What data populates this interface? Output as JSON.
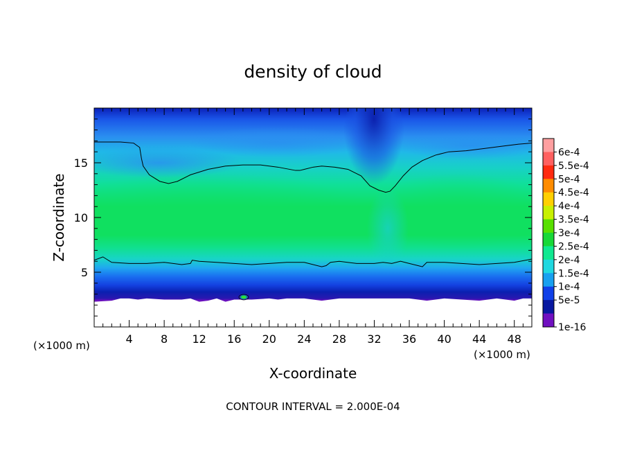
{
  "chart_data": {
    "type": "heatmap",
    "title": "density of cloud",
    "xlabel": "X-coordinate",
    "ylabel": "Z-coordinate",
    "x_unit_left": "(×1000 m)",
    "x_unit_right": "(×1000 m)",
    "footer": "CONTOUR INTERVAL = 2.000E-04",
    "xlim": [
      0,
      50
    ],
    "ylim": [
      0,
      20
    ],
    "x_ticks": [
      4,
      8,
      12,
      16,
      20,
      24,
      28,
      32,
      36,
      40,
      44,
      48
    ],
    "y_ticks": [
      5,
      10,
      15
    ],
    "colorbar": {
      "labels": [
        "6e-4",
        "5.5e-4",
        "5e-4",
        "4.5e-4",
        "4e-4",
        "3.5e-4",
        "3e-4",
        "2.5e-4",
        "2e-4",
        "1.5e-4",
        "1e-4",
        "5e-5",
        "1e-16"
      ],
      "colors": [
        "#ff9fa0",
        "#ff6060",
        "#ff2a10",
        "#ff8c00",
        "#ffd000",
        "#c8f000",
        "#58e000",
        "#18d838",
        "#10e890",
        "#20d8e0",
        "#18a0f0",
        "#1040e8",
        "#0818a0",
        "#7010c0"
      ]
    },
    "contour_levels": [
      0.0002
    ],
    "contours": [
      {
        "level": 0.0002,
        "name": "upper",
        "x": [
          0,
          1.5,
          3,
          4.5,
          5.2,
          5.4,
          5.6,
          6.3,
          7.5,
          8.5,
          9.5,
          11,
          13,
          15,
          17,
          19,
          21,
          23,
          23.5,
          24,
          25,
          26,
          27.5,
          29,
          30.5,
          31.5,
          32.5,
          33.3,
          33.8,
          34.4,
          35.3,
          36.3,
          37.5,
          39,
          40.5,
          42.5,
          44.5,
          46.5,
          48.5,
          50
        ],
        "y": [
          16.9,
          16.9,
          16.9,
          16.8,
          16.4,
          15.4,
          14.7,
          13.9,
          13.3,
          13.1,
          13.3,
          13.9,
          14.4,
          14.7,
          14.8,
          14.8,
          14.6,
          14.3,
          14.3,
          14.4,
          14.6,
          14.7,
          14.6,
          14.4,
          13.8,
          12.9,
          12.5,
          12.3,
          12.4,
          12.9,
          13.8,
          14.6,
          15.2,
          15.7,
          16.0,
          16.1,
          16.3,
          16.5,
          16.7,
          16.8
        ]
      },
      {
        "level": 0.0002,
        "name": "lower",
        "x": [
          0,
          1,
          2,
          4,
          6,
          8,
          10,
          11,
          11.2,
          12,
          14,
          16,
          18,
          20,
          22,
          24,
          26,
          26.5,
          27,
          28,
          30,
          32,
          33,
          34,
          35,
          36,
          37,
          37.5,
          38,
          40,
          42,
          44,
          46,
          48,
          50
        ],
        "y": [
          6.1,
          6.4,
          5.9,
          5.8,
          5.8,
          5.9,
          5.7,
          5.8,
          6.1,
          6.0,
          5.9,
          5.8,
          5.7,
          5.8,
          5.9,
          5.9,
          5.5,
          5.6,
          5.9,
          6.0,
          5.8,
          5.8,
          5.9,
          5.8,
          6.0,
          5.8,
          5.6,
          5.5,
          5.9,
          5.9,
          5.8,
          5.7,
          5.8,
          5.9,
          6.2
        ]
      }
    ],
    "terrain_top": {
      "x": [
        0,
        2,
        3,
        4,
        5,
        6,
        8,
        10,
        11,
        12,
        13,
        14,
        15,
        16,
        18,
        20,
        21,
        22,
        24,
        26,
        28,
        30,
        32,
        34,
        36,
        37,
        38,
        40,
        42,
        44,
        46,
        47,
        48,
        49,
        50
      ],
      "y": [
        2.3,
        2.4,
        2.6,
        2.6,
        2.5,
        2.6,
        2.5,
        2.5,
        2.6,
        2.3,
        2.4,
        2.6,
        2.3,
        2.5,
        2.5,
        2.6,
        2.5,
        2.6,
        2.6,
        2.4,
        2.6,
        2.6,
        2.6,
        2.6,
        2.6,
        2.5,
        2.4,
        2.6,
        2.5,
        2.4,
        2.6,
        2.5,
        2.4,
        2.6,
        2.6
      ]
    },
    "fields": [
      {
        "name": "top-dark-band",
        "x": [
          0,
          50
        ],
        "z": [
          18.5,
          20
        ],
        "value": 8e-05
      },
      {
        "name": "upper-mid-band",
        "x": [
          0,
          50
        ],
        "z": [
          16,
          18.5
        ],
        "value": 0.00014
      },
      {
        "name": "plateau",
        "x": [
          0,
          50
        ],
        "z": [
          7,
          14
        ],
        "value": 0.00026
      },
      {
        "name": "lower-transition",
        "x": [
          0,
          50
        ],
        "z": [
          4,
          6
        ],
        "value": 0.00015
      },
      {
        "name": "ground-layer",
        "x": [
          0,
          50
        ],
        "z": [
          2.4,
          3.2
        ],
        "value": 4e-05
      },
      {
        "name": "local-max",
        "x": [
          17,
          17.8
        ],
        "z": [
          2.6,
          3.0
        ],
        "value": 0.00034
      }
    ]
  }
}
